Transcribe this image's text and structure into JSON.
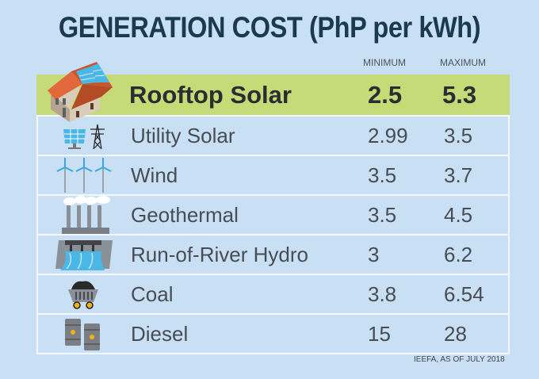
{
  "title": "GENERATION COST (PhP per kWh)",
  "columns": {
    "min": "MINIMUM",
    "max": "MAXIMUM"
  },
  "rows": [
    {
      "name": "Rooftop Solar",
      "min": "2.5",
      "max": "5.3",
      "icon": "house-solar-icon",
      "highlight": true
    },
    {
      "name": "Utility Solar",
      "min": "2.99",
      "max": "3.5",
      "icon": "solar-panel-tower-icon"
    },
    {
      "name": "Wind",
      "min": "3.5",
      "max": "3.7",
      "icon": "wind-turbines-icon"
    },
    {
      "name": "Geothermal",
      "min": "3.5",
      "max": "4.5",
      "icon": "geothermal-plant-icon"
    },
    {
      "name": "Run-of-River Hydro",
      "min": "3",
      "max": "6.2",
      "icon": "hydro-dam-icon"
    },
    {
      "name": "Coal",
      "min": "3.8",
      "max": "6.54",
      "icon": "coal-cart-icon"
    },
    {
      "name": "Diesel",
      "min": "15",
      "max": "28",
      "icon": "oil-barrels-icon"
    }
  ],
  "source": "IEEFA, AS OF JULY 2018",
  "colors": {
    "background": "#c9e0f4",
    "highlight": "#c4db78",
    "title": "#1b3a4b"
  }
}
